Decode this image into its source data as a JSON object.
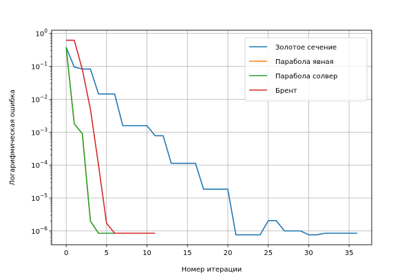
{
  "chart_data": {
    "type": "line",
    "title": "",
    "xlabel": "Номер итерации",
    "ylabel": "Логарифмическая ошибка",
    "xlim": [
      -1.8,
      37.8
    ],
    "ylim": [
      3.8e-07,
      1.25
    ],
    "yscale": "log",
    "x_ticks": [
      0,
      5,
      10,
      15,
      20,
      25,
      30,
      35
    ],
    "y_ticks": [
      {
        "value": 1e-06,
        "label": "10",
        "exp": "−6"
      },
      {
        "value": 1e-05,
        "label": "10",
        "exp": "−5"
      },
      {
        "value": 0.0001,
        "label": "10",
        "exp": "−4"
      },
      {
        "value": 0.001,
        "label": "10",
        "exp": "−3"
      },
      {
        "value": 0.01,
        "label": "10",
        "exp": "−2"
      },
      {
        "value": 0.1,
        "label": "10",
        "exp": "−1"
      },
      {
        "value": 1,
        "label": "10",
        "exp": "0"
      }
    ],
    "grid": true,
    "legend_position": "top-right",
    "series": [
      {
        "name": "Золотое сечение",
        "color": "#1f77b4",
        "x": [
          0,
          1,
          2,
          3,
          4,
          5,
          6,
          7,
          8,
          9,
          10,
          11,
          12,
          13,
          14,
          15,
          16,
          17,
          18,
          19,
          20,
          21,
          22,
          23,
          24,
          25,
          26,
          27,
          28,
          29,
          30,
          31,
          32,
          33,
          34,
          35,
          36
        ],
        "y": [
          0.38,
          0.095,
          0.083,
          0.083,
          0.0145,
          0.0145,
          0.0145,
          0.00158,
          0.00158,
          0.00158,
          0.00158,
          0.00078,
          0.00078,
          0.000113,
          0.000113,
          0.000113,
          0.000113,
          1.85e-05,
          1.85e-05,
          1.85e-05,
          1.85e-05,
          7.6e-07,
          7.6e-07,
          7.6e-07,
          7.6e-07,
          2.05e-06,
          2.05e-06,
          1e-06,
          1e-06,
          1e-06,
          7.6e-07,
          7.6e-07,
          8.5e-07,
          8.5e-07,
          8.5e-07,
          8.5e-07,
          8.5e-07
        ]
      },
      {
        "name": "Парабола явная",
        "color": "#ff7f0e",
        "x": [
          0,
          1,
          2,
          3,
          4,
          5,
          6
        ],
        "y": [
          0.38,
          0.0018,
          0.0009,
          2e-06,
          8.5e-07,
          8.5e-07,
          8.5e-07
        ]
      },
      {
        "name": "Парабола солвер",
        "color": "#2ca02c",
        "x": [
          0,
          1,
          2,
          3,
          4,
          5,
          6
        ],
        "y": [
          0.38,
          0.0018,
          0.0009,
          2e-06,
          8.5e-07,
          8.5e-07,
          8.5e-07
        ]
      },
      {
        "name": "Брент",
        "color": "#d62728",
        "x": [
          0,
          1,
          2,
          3,
          4,
          5,
          6,
          7,
          8,
          9,
          10,
          11
        ],
        "y": [
          0.62,
          0.62,
          0.08,
          0.005,
          0.0001,
          1.7e-06,
          8.5e-07,
          8.5e-07,
          8.5e-07,
          8.5e-07,
          8.5e-07,
          8.5e-07
        ]
      }
    ]
  }
}
